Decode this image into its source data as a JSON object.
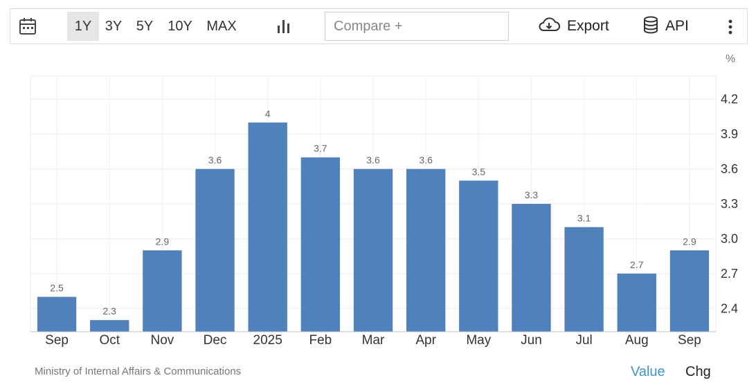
{
  "toolbar": {
    "ranges": [
      "1Y",
      "3Y",
      "5Y",
      "10Y",
      "MAX"
    ],
    "active_range": "1Y",
    "compare_placeholder": "Compare +",
    "export_label": "Export",
    "api_label": "API",
    "icons": {
      "calendar": "calendar-icon",
      "chart_type": "bar-chart-icon",
      "export": "cloud-download-icon",
      "api": "database-icon",
      "more": "more-vertical-icon"
    }
  },
  "chart_data": {
    "type": "bar",
    "categories": [
      "Sep",
      "Oct",
      "Nov",
      "Dec",
      "2025",
      "Feb",
      "Mar",
      "Apr",
      "May",
      "Jun",
      "Jul",
      "Aug",
      "Sep"
    ],
    "values": [
      2.5,
      2.3,
      2.9,
      3.6,
      4,
      3.7,
      3.6,
      3.6,
      3.5,
      3.3,
      3.1,
      2.7,
      2.9
    ],
    "data_labels": [
      "2.5",
      "2.3",
      "2.9",
      "3.6",
      "4",
      "3.7",
      "3.6",
      "3.6",
      "3.5",
      "3.3",
      "3.1",
      "2.7",
      "2.9"
    ],
    "unit": "%",
    "y_ticks": [
      "4.2",
      "3.9",
      "3.6",
      "3.3",
      "3.0",
      "2.7",
      "2.4"
    ],
    "ylim": [
      2.2,
      4.4
    ],
    "grid": true,
    "bar_color": "#4f81bd"
  },
  "footer": {
    "source": "Ministry of Internal Affairs & Communications",
    "value_label": "Value",
    "chg_label": "Chg"
  },
  "colors": {
    "accent": "#3a93d8",
    "bar": "#4f81bd"
  }
}
